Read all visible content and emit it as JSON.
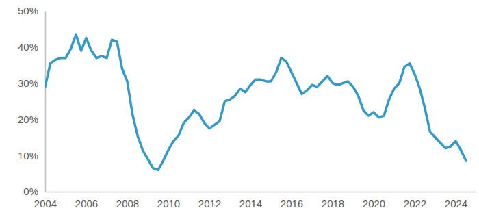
{
  "chart_data": {
    "type": "line",
    "x": [
      2004,
      2004.25,
      2004.5,
      2004.75,
      2005,
      2005.25,
      2005.5,
      2005.75,
      2006,
      2006.25,
      2006.5,
      2006.75,
      2007,
      2007.25,
      2007.5,
      2007.75,
      2008,
      2008.25,
      2008.5,
      2008.75,
      2009,
      2009.25,
      2009.5,
      2009.75,
      2010,
      2010.25,
      2010.5,
      2010.75,
      2011,
      2011.25,
      2011.5,
      2011.75,
      2012,
      2012.25,
      2012.5,
      2012.75,
      2013,
      2013.25,
      2013.5,
      2013.75,
      2014,
      2014.25,
      2014.5,
      2014.75,
      2015,
      2015.25,
      2015.5,
      2015.75,
      2016,
      2016.25,
      2016.5,
      2016.75,
      2017,
      2017.25,
      2017.5,
      2017.75,
      2018,
      2018.25,
      2018.5,
      2018.75,
      2019,
      2019.25,
      2019.5,
      2019.75,
      2020,
      2020.25,
      2020.5,
      2020.75,
      2021,
      2021.25,
      2021.5,
      2021.75,
      2022,
      2022.25,
      2022.5,
      2022.75,
      2023,
      2023.25,
      2023.5,
      2023.75,
      2024,
      2024.25,
      2024.5
    ],
    "values": [
      29,
      35.5,
      36.5,
      37,
      37,
      39.5,
      43.5,
      39,
      42.5,
      39,
      37,
      37.5,
      37,
      42,
      41.5,
      34,
      30.5,
      21.5,
      15.5,
      11.5,
      9,
      6.5,
      6,
      8.5,
      11.5,
      14,
      15.5,
      19,
      20.5,
      22.5,
      21.5,
      19,
      17.5,
      18.5,
      19.5,
      25,
      25.5,
      26.5,
      28.5,
      27.5,
      29.5,
      31,
      31,
      30.5,
      30.5,
      33,
      37,
      36,
      33,
      30,
      27,
      28,
      29.5,
      29,
      30.5,
      32,
      30,
      29.5,
      30,
      30.5,
      29,
      26.5,
      22.5,
      21,
      22,
      20.5,
      21,
      25.5,
      28.5,
      30,
      34.5,
      35.5,
      32.5,
      28.5,
      23,
      16.5,
      15,
      13.5,
      12,
      12.5,
      14,
      11.5,
      8.5
    ],
    "color": "#3399c8",
    "xlim": [
      2004,
      2025
    ],
    "xticks": [
      2004,
      2006,
      2008,
      2010,
      2012,
      2014,
      2016,
      2018,
      2020,
      2022,
      2024
    ],
    "ylim": [
      0,
      50
    ],
    "yticks": [
      {
        "value": 0,
        "label": "0%"
      },
      {
        "value": 10,
        "label": "10%"
      },
      {
        "value": 20,
        "label": "20%"
      },
      {
        "value": 30,
        "label": "30%"
      },
      {
        "value": 40,
        "label": "40%"
      },
      {
        "value": 50,
        "label": "50%"
      }
    ],
    "grid": false
  }
}
